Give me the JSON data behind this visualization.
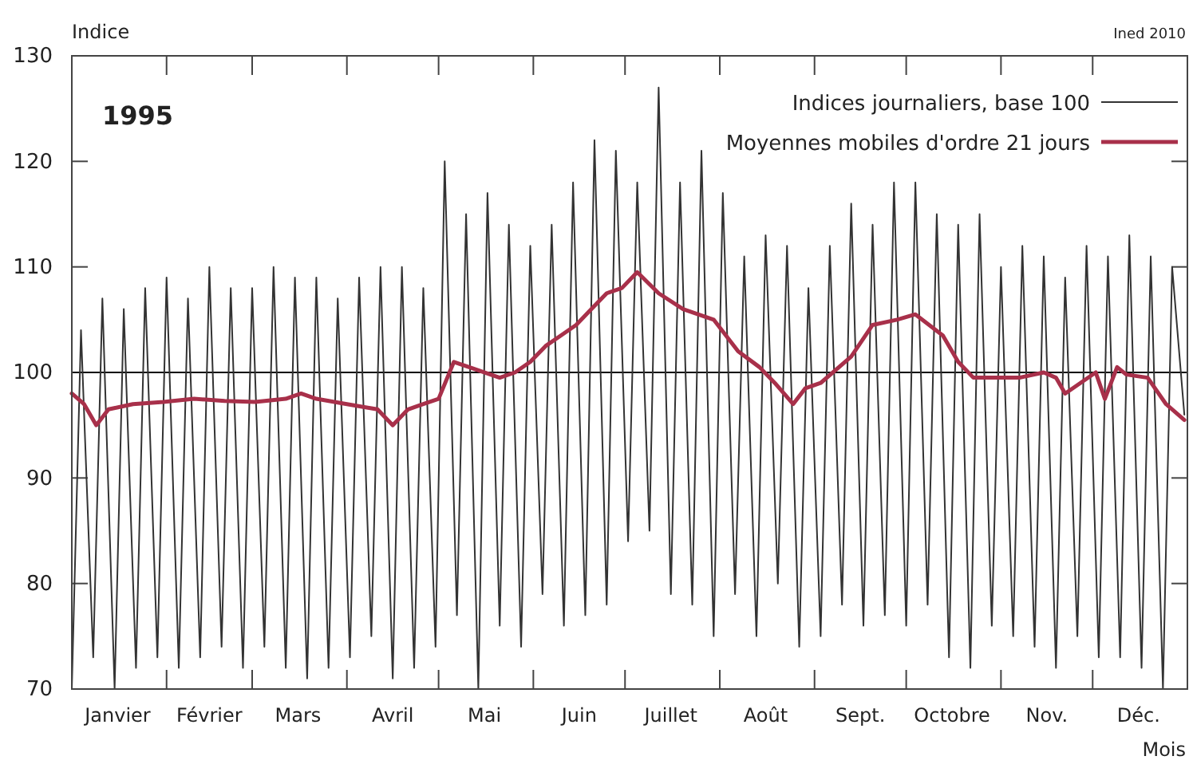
{
  "chart_data": {
    "type": "line",
    "title": "1995",
    "xlabel": "Mois",
    "ylabel": "Indice",
    "annotations": [
      "Ined 2010"
    ],
    "xlim": [
      "1995-01-01",
      "1996-01-01"
    ],
    "xticks": [
      {
        "value": "1995-01-01",
        "label": null
      },
      {
        "value": "1995-01-16",
        "label": "Janvier"
      },
      {
        "value": "1995-02-01",
        "label": null
      },
      {
        "value": "1995-02-15",
        "label": "Février"
      },
      {
        "value": "1995-03-01",
        "label": null
      },
      {
        "value": "1995-03-16",
        "label": "Mars"
      },
      {
        "value": "1995-04-01",
        "label": null
      },
      {
        "value": "1995-04-16",
        "label": "Avril"
      },
      {
        "value": "1995-05-01",
        "label": null
      },
      {
        "value": "1995-05-16",
        "label": "Mai"
      },
      {
        "value": "1995-06-01",
        "label": null
      },
      {
        "value": "1995-06-16",
        "label": "Juin"
      },
      {
        "value": "1995-07-01",
        "label": null
      },
      {
        "value": "1995-07-16",
        "label": "Juillet"
      },
      {
        "value": "1995-08-01",
        "label": null
      },
      {
        "value": "1995-08-16",
        "label": "Août"
      },
      {
        "value": "1995-09-01",
        "label": null
      },
      {
        "value": "1995-09-16",
        "label": "Sept."
      },
      {
        "value": "1995-10-01",
        "label": null
      },
      {
        "value": "1995-10-16",
        "label": "Octobre"
      },
      {
        "value": "1995-11-01",
        "label": null
      },
      {
        "value": "1995-11-16",
        "label": "Nov."
      },
      {
        "value": "1995-12-01",
        "label": null
      },
      {
        "value": "1995-12-16",
        "label": "Déc."
      },
      {
        "value": "1996-01-01",
        "label": null
      }
    ],
    "ylim": [
      70,
      130
    ],
    "yticks": [
      70,
      80,
      90,
      100,
      110,
      120,
      130
    ],
    "ref_lines": [
      {
        "axis": "y",
        "value": 100,
        "color": "#000000"
      }
    ],
    "legend": "top right",
    "grid": false,
    "series": [
      {
        "name": "Indices journaliers, base 100",
        "color": "#333333",
        "x": [
          "1995-01-01",
          "1995-01-04",
          "1995-01-08",
          "1995-01-11",
          "1995-01-15",
          "1995-01-18",
          "1995-01-22",
          "1995-01-25",
          "1995-01-29",
          "1995-02-01",
          "1995-02-05",
          "1995-02-08",
          "1995-02-12",
          "1995-02-15",
          "1995-02-19",
          "1995-02-22",
          "1995-02-26",
          "1995-03-01",
          "1995-03-05",
          "1995-03-08",
          "1995-03-12",
          "1995-03-15",
          "1995-03-19",
          "1995-03-22",
          "1995-03-26",
          "1995-03-29",
          "1995-04-02",
          "1995-04-05",
          "1995-04-09",
          "1995-04-12",
          "1995-04-16",
          "1995-04-19",
          "1995-04-23",
          "1995-04-26",
          "1995-04-30",
          "1995-05-03",
          "1995-05-07",
          "1995-05-10",
          "1995-05-14",
          "1995-05-17",
          "1995-05-21",
          "1995-05-24",
          "1995-05-28",
          "1995-05-31",
          "1995-06-04",
          "1995-06-07",
          "1995-06-11",
          "1995-06-14",
          "1995-06-18",
          "1995-06-21",
          "1995-06-25",
          "1995-06-28",
          "1995-07-02",
          "1995-07-05",
          "1995-07-09",
          "1995-07-12",
          "1995-07-16",
          "1995-07-19",
          "1995-07-23",
          "1995-07-26",
          "1995-07-30",
          "1995-08-02",
          "1995-08-06",
          "1995-08-09",
          "1995-08-13",
          "1995-08-16",
          "1995-08-20",
          "1995-08-23",
          "1995-08-27",
          "1995-08-30",
          "1995-09-03",
          "1995-09-06",
          "1995-09-10",
          "1995-09-13",
          "1995-09-17",
          "1995-09-20",
          "1995-09-24",
          "1995-09-27",
          "1995-10-01",
          "1995-10-04",
          "1995-10-08",
          "1995-10-11",
          "1995-10-15",
          "1995-10-18",
          "1995-10-22",
          "1995-10-25",
          "1995-10-29",
          "1995-11-01",
          "1995-11-05",
          "1995-11-08",
          "1995-11-12",
          "1995-11-15",
          "1995-11-19",
          "1995-11-22",
          "1995-11-26",
          "1995-11-29",
          "1995-12-03",
          "1995-12-06",
          "1995-12-10",
          "1995-12-13",
          "1995-12-17",
          "1995-12-20",
          "1995-12-24",
          "1995-12-27",
          "1995-12-31"
        ],
        "values": [
          70,
          104,
          73,
          107,
          70,
          106,
          72,
          108,
          73,
          109,
          72,
          107,
          73,
          110,
          74,
          108,
          72,
          108,
          74,
          110,
          72,
          109,
          71,
          109,
          72,
          107,
          73,
          109,
          75,
          110,
          71,
          110,
          72,
          108,
          74,
          120,
          77,
          115,
          70,
          117,
          76,
          114,
          74,
          112,
          79,
          114,
          76,
          118,
          77,
          122,
          78,
          121,
          84,
          118,
          85,
          127,
          79,
          118,
          78,
          121,
          75,
          117,
          79,
          111,
          75,
          113,
          80,
          112,
          74,
          108,
          75,
          112,
          78,
          116,
          76,
          114,
          77,
          118,
          76,
          118,
          78,
          115,
          73,
          114,
          72,
          115,
          76,
          110,
          75,
          112,
          74,
          111,
          72,
          109,
          75,
          112,
          73,
          111,
          73,
          113,
          72,
          111,
          70,
          110,
          96
        ]
      },
      {
        "name": "Moyennes mobiles d'ordre 21 jours",
        "color": "#a8304a",
        "x": [
          "1995-01-01",
          "1995-01-05",
          "1995-01-09",
          "1995-01-13",
          "1995-01-21",
          "1995-01-31",
          "1995-02-10",
          "1995-02-20",
          "1995-03-02",
          "1995-03-12",
          "1995-03-17",
          "1995-03-22",
          "1995-04-01",
          "1995-04-11",
          "1995-04-16",
          "1995-04-21",
          "1995-04-26",
          "1995-05-01",
          "1995-05-06",
          "1995-05-11",
          "1995-05-21",
          "1995-05-26",
          "1995-05-31",
          "1995-06-05",
          "1995-06-10",
          "1995-06-15",
          "1995-06-20",
          "1995-06-25",
          "1995-06-30",
          "1995-07-05",
          "1995-07-12",
          "1995-07-20",
          "1995-07-30",
          "1995-08-07",
          "1995-08-14",
          "1995-08-19",
          "1995-08-25",
          "1995-08-29",
          "1995-09-03",
          "1995-09-13",
          "1995-09-20",
          "1995-09-28",
          "1995-10-04",
          "1995-10-13",
          "1995-10-18",
          "1995-10-23",
          "1995-11-02",
          "1995-11-07",
          "1995-11-15",
          "1995-11-19",
          "1995-11-22",
          "1995-11-27",
          "1995-12-02",
          "1995-12-05",
          "1995-12-09",
          "1995-12-12",
          "1995-12-19",
          "1995-12-25",
          "1995-12-31"
        ],
        "values": [
          98,
          97,
          95,
          96.5,
          97,
          97.2,
          97.5,
          97.3,
          97.2,
          97.5,
          98,
          97.5,
          97,
          96.5,
          95,
          96.5,
          97,
          97.5,
          101,
          100.5,
          99.5,
          100,
          101,
          102.5,
          103.5,
          104.5,
          106,
          107.5,
          108,
          109.5,
          107.5,
          106,
          105,
          102,
          100.5,
          99,
          97,
          98.5,
          99,
          101.5,
          104.5,
          105,
          105.5,
          103.5,
          101,
          99.5,
          99.5,
          99.5,
          100,
          99.5,
          98,
          99,
          100,
          97.5,
          100.5,
          99.8,
          99.5,
          97,
          95.5
        ]
      }
    ]
  }
}
